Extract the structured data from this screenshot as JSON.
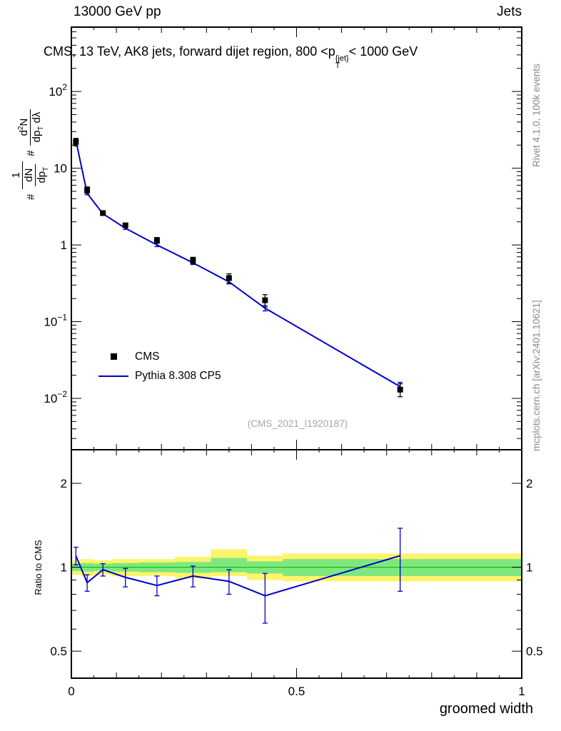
{
  "header": {
    "left": "13000 GeV pp",
    "right": "Jets"
  },
  "title": {
    "pre": "CMS, 13 TeV, AK8 jets, forward dijet region, 800 <",
    "p": "p",
    "sup": "{jet}",
    "sub": "T",
    "post": "< 1000 GeV"
  },
  "ylabel_main": {
    "hash": "#",
    "one": "1",
    "dN": "dN",
    "dp": "dp",
    "T": "T",
    "d": "d",
    "two": "2",
    "N": "N",
    "dlam": "dλ"
  },
  "ratio_ylabel": "Ratio to CMS",
  "xaxis_label": "groomed width",
  "watermark": "(CMS_2021_I1920187)",
  "side_labels": {
    "top_right": "Rivet 4.1.0, 100k events",
    "bottom_right": "mcplots.cern.ch [arXiv:2401.10621]"
  },
  "legend": {
    "cms": "CMS",
    "pythia": "Pythia 8.308 CP5"
  },
  "chart_data": [
    {
      "type": "line",
      "panel": "main",
      "title": "CMS, 13 TeV, AK8 jets, forward dijet region, 800 < pT{jet} < 1000 GeV",
      "xlabel": "groomed width",
      "ylabel": "# 1/(dN/dpT) # d2N/(dpT dlambda)",
      "yscale": "log",
      "xlim": [
        0,
        1
      ],
      "ylim": [
        0.00214,
        690
      ],
      "yticks_exponents": [
        2,
        1,
        0,
        -1,
        -2
      ],
      "xticks": [
        0,
        0.5,
        1
      ],
      "xtick_labels": [
        "0",
        "0.5",
        "1"
      ],
      "grid": false,
      "legend_position": "left-middle",
      "series": [
        {
          "name": "CMS",
          "style": "marker",
          "marker": "square",
          "color": "#000000",
          "x": [
            0.01,
            0.035,
            0.07,
            0.12,
            0.19,
            0.27,
            0.35,
            0.43,
            0.73
          ],
          "y": [
            22,
            5.2,
            2.6,
            1.8,
            1.15,
            0.63,
            0.37,
            0.19,
            0.013
          ],
          "yerr": [
            2.5,
            0.5,
            0.18,
            0.12,
            0.1,
            0.06,
            0.05,
            0.035,
            0.0025
          ]
        },
        {
          "name": "Pythia 8.308 CP5",
          "style": "line",
          "color": "#0000cd",
          "x": [
            0.01,
            0.035,
            0.07,
            0.12,
            0.19,
            0.27,
            0.35,
            0.43,
            0.73
          ],
          "y": [
            23,
            4.7,
            2.55,
            1.65,
            1.0,
            0.585,
            0.33,
            0.15,
            0.0142
          ],
          "yerr": [
            1.2,
            0.2,
            0.1,
            0.06,
            0.05,
            0.03,
            0.02,
            0.012,
            0.002
          ]
        }
      ]
    },
    {
      "type": "line",
      "panel": "ratio",
      "ylabel": "Ratio to CMS",
      "yscale": "log",
      "xlim": [
        0,
        1
      ],
      "ylim": [
        0.4,
        2.64
      ],
      "yticks": [
        0.5,
        1,
        2
      ],
      "ytick_labels": [
        "0.5",
        "1",
        "2"
      ],
      "yminor": [
        0.6,
        0.7,
        0.8,
        0.9
      ],
      "bands": {
        "edges": [
          0,
          0.02,
          0.05,
          0.09,
          0.15,
          0.23,
          0.31,
          0.39,
          0.47,
          1.0
        ],
        "yellow_lo": [
          0.94,
          0.93,
          0.94,
          0.93,
          0.93,
          0.91,
          0.93,
          0.9,
          0.89
        ],
        "yellow_hi": [
          1.06,
          1.07,
          1.06,
          1.07,
          1.07,
          1.09,
          1.16,
          1.1,
          1.12
        ],
        "green_lo": [
          0.97,
          0.965,
          0.97,
          0.965,
          0.96,
          0.955,
          0.96,
          0.95,
          0.93
        ],
        "green_hi": [
          1.03,
          1.035,
          1.03,
          1.035,
          1.04,
          1.045,
          1.08,
          1.05,
          1.07
        ],
        "yellow_color": "#fcf46b",
        "green_color": "#7ee87e",
        "center_line_color": "#00b600"
      },
      "series": [
        {
          "name": "Pythia 8.308 CP5 / CMS",
          "style": "line",
          "color": "#0000cd",
          "x": [
            0.01,
            0.035,
            0.07,
            0.12,
            0.19,
            0.27,
            0.35,
            0.43,
            0.73
          ],
          "y": [
            1.1,
            0.88,
            0.98,
            0.92,
            0.86,
            0.93,
            0.89,
            0.79,
            1.1
          ],
          "yerr": [
            0.08,
            0.06,
            0.05,
            0.07,
            0.07,
            0.08,
            0.09,
            0.16,
            0.28
          ]
        }
      ]
    }
  ]
}
